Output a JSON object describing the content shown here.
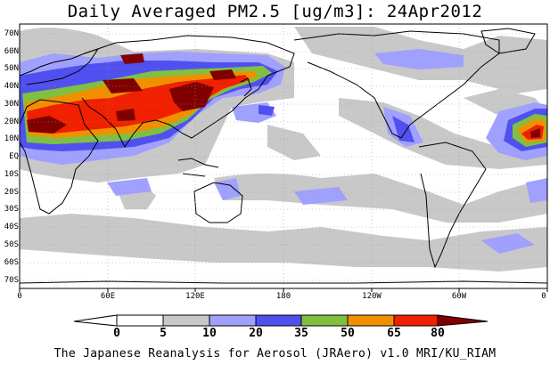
{
  "title": "Daily Averaged PM2.5 [ug/m3]: 24Apr2012",
  "footer": "The Japanese Reanalysis for Aerosol (JRAero) v1.0 MRI/KU_RIAM",
  "map": {
    "lat_labels": [
      "70N",
      "60N",
      "50N",
      "40N",
      "30N",
      "20N",
      "10N",
      "EQ",
      "10S",
      "20S",
      "30S",
      "40S",
      "50S",
      "60S",
      "70S"
    ],
    "lon_labels": [
      "0",
      "60E",
      "120E",
      "180",
      "120W",
      "60W",
      "0"
    ],
    "colors": {
      "ocean": "#ffffff",
      "land_outline": "#000000",
      "grid": "#999999"
    }
  },
  "colorbar": {
    "labels": [
      "0",
      "5",
      "10",
      "20",
      "35",
      "50",
      "65",
      "80"
    ],
    "colors": [
      "#ffffff",
      "#c8c8c8",
      "#a0a0ff",
      "#5050f0",
      "#80c040",
      "#f09000",
      "#f02000",
      "#800000"
    ]
  }
}
